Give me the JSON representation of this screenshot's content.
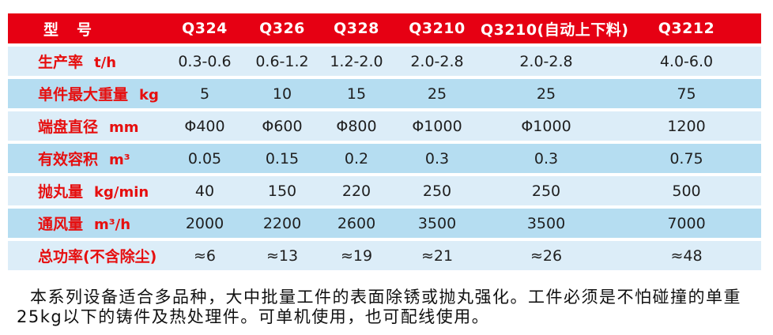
{
  "colors": {
    "header_bg": "#e60013",
    "label_text": "#e60f0f",
    "row_light": "#dcedf8",
    "row_dark": "#b5ddf1",
    "value_text": "#1f1f1f"
  },
  "table": {
    "header": [
      "型　号",
      "Q324",
      "Q326",
      "Q328",
      "Q3210",
      "Q3210(自动上下料)",
      "Q3212"
    ],
    "rows": [
      {
        "label": "生产率",
        "unit": "t/h",
        "values": [
          "0.3-0.6",
          "0.6-1.2",
          "1.2-2.0",
          "2.0-2.8",
          "2.0-2.8",
          "4.0-6.0"
        ]
      },
      {
        "label": "单件最大重量",
        "unit": "kg",
        "values": [
          "5",
          "10",
          "15",
          "25",
          "25",
          "75"
        ]
      },
      {
        "label": "端盘直径",
        "unit": "mm",
        "values": [
          "Φ400",
          "Φ600",
          "Φ800",
          "Φ1000",
          "Φ1000",
          "1200"
        ]
      },
      {
        "label": "有效容积",
        "unit": "m³",
        "values": [
          "0.05",
          "0.15",
          "0.2",
          "0.3",
          "0.3",
          "0.75"
        ]
      },
      {
        "label": "抛丸量",
        "unit": "kg/min",
        "values": [
          "40",
          "150",
          "220",
          "250",
          "250",
          "500"
        ]
      },
      {
        "label": "通风量",
        "unit": "m³/h",
        "values": [
          "2000",
          "2200",
          "2600",
          "3500",
          "3500",
          "7000"
        ]
      },
      {
        "label": "总功率(不含除尘)",
        "unit": "",
        "values": [
          "≈6",
          "≈13",
          "≈19",
          "≈21",
          "≈26",
          "≈48"
        ]
      }
    ]
  },
  "note": {
    "lines": [
      "本系列设备适合多品种，大中批量工件的表面除锈或抛丸强化。工件必须是不怕碰撞的单重",
      "25kg以下的铸件及热处理件。可单机使用，也可配线使用。"
    ]
  }
}
